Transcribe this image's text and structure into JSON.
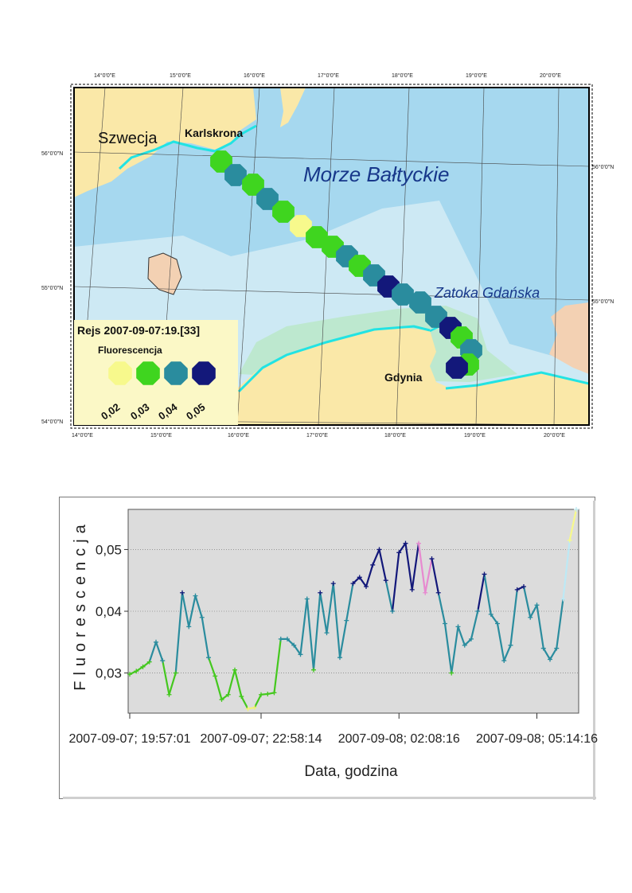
{
  "map": {
    "labels": {
      "country": "Szwecja",
      "city_karlskrona": "Karlskrona",
      "sea": "Morze Bałtyckie",
      "gulf": "Zatoka Gdańska",
      "city_gdynia": "Gdynia"
    },
    "lon_ticks": [
      "14°0'0\"E",
      "15°0'0\"E",
      "16°0'0\"E",
      "17°0'0\"E",
      "18°0'0\"E",
      "19°0'0\"E",
      "20°0'0\"E"
    ],
    "lat_ticks": [
      "56°0'0\"N",
      "55°0'0\"N",
      "54°0'0\"N"
    ],
    "legend": {
      "title": "Rejs 2007-09-07:19.[33]",
      "subtitle": "Fluorescencja",
      "classes": [
        {
          "label": "0,02",
          "color": "#f7f98c"
        },
        {
          "label": "0,03",
          "color": "#3fd51f"
        },
        {
          "label": "0,04",
          "color": "#2a8c9e"
        },
        {
          "label": "0,05",
          "color": "#13187a"
        }
      ]
    },
    "colors": {
      "land": "#fae8a8",
      "sea_deep": "#a6d8ef",
      "sea_shallow": "#cde9f4",
      "coast_zone": "#bde8cf",
      "coastline": "#22e3e3",
      "foreign_land": "#f3d1b3"
    }
  },
  "chart_data": {
    "type": "line",
    "title": "",
    "xlabel": "Data, godzina",
    "ylabel": "Fluorescencja",
    "ylim": [
      0.0235,
      0.0565
    ],
    "yticks": [
      {
        "value": 0.03,
        "label": "0,03"
      },
      {
        "value": 0.04,
        "label": "0,04"
      },
      {
        "value": 0.05,
        "label": "0,05"
      }
    ],
    "x_tick_labels": [
      "2007-09-07; 19:57:01",
      "2007-09-07; 22:58:14",
      "2007-09-08; 02:08:16",
      "2007-09-08; 05:14:16"
    ],
    "grid": true,
    "series": [
      {
        "values": [
          0.0298,
          0.0303,
          0.031,
          0.0318,
          0.035,
          0.032,
          0.0265,
          0.03,
          0.043,
          0.0375,
          0.0425,
          0.039,
          0.0325,
          0.0295,
          0.0257,
          0.0265,
          0.0305,
          0.0262,
          0.0242,
          0.0244,
          0.0265,
          0.0266,
          0.0268,
          0.0355,
          0.0355,
          0.0345,
          0.033,
          0.042,
          0.0305,
          0.043,
          0.0365,
          0.0445,
          0.0325,
          0.0385,
          0.0445,
          0.0455,
          0.044,
          0.0475,
          0.05,
          0.045,
          0.04,
          0.0495,
          0.051,
          0.0435,
          0.051,
          0.043,
          0.0485,
          0.043,
          0.038,
          0.03,
          0.0375,
          0.0345,
          0.0355,
          0.04,
          0.046,
          0.0395,
          0.038,
          0.032,
          0.0345,
          0.0435,
          0.044,
          0.039,
          0.041,
          0.034,
          0.0322,
          0.034,
          0.042,
          0.0515,
          0.0565
        ]
      }
    ]
  }
}
